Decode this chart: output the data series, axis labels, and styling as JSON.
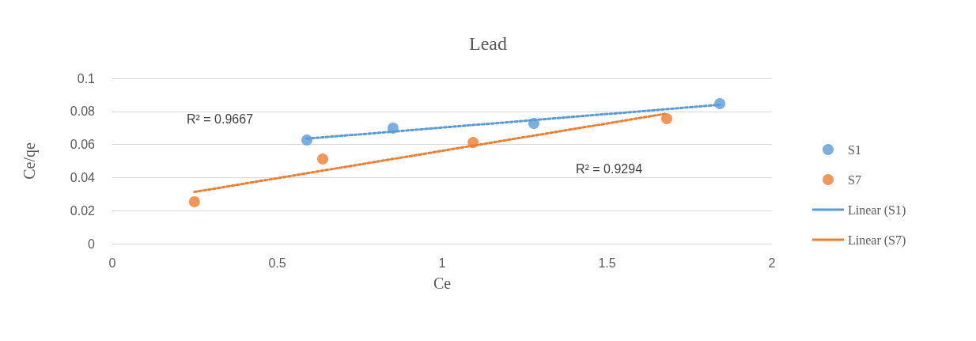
{
  "chart_data": {
    "type": "scatter",
    "title": "Lead",
    "xlabel": "Ce",
    "ylabel": "Ce/qe",
    "xlim": [
      0,
      2
    ],
    "xticks": [
      0,
      0.5,
      1,
      1.5,
      2
    ],
    "ylim": [
      0,
      0.1
    ],
    "yticks": [
      0,
      0.02,
      0.04,
      0.06,
      0.08,
      0.1
    ],
    "grid": "y",
    "legend": "right",
    "series": [
      {
        "name": "S1",
        "marker": "circle",
        "color": "#5b9bd5",
        "x": [
          0.59,
          0.851,
          1.278,
          1.842
        ],
        "values": [
          0.0627,
          0.0699,
          0.0727,
          0.0847
        ]
      },
      {
        "name": "S7",
        "marker": "circle",
        "color": "#ed7d31",
        "x": [
          0.249,
          0.638,
          1.094,
          1.681
        ],
        "values": [
          0.0254,
          0.0512,
          0.0612,
          0.0756
        ]
      },
      {
        "name": "Linear (S1)",
        "type": "line",
        "marker": "none",
        "line_style": "dotted",
        "color": "#5b9bd5",
        "x": [
          0.59,
          1.842
        ],
        "values": [
          0.0635,
          0.084
        ]
      },
      {
        "name": "Linear (S7)",
        "type": "line",
        "marker": "none",
        "line_style": "dotted",
        "color": "#ed7d31",
        "x": [
          0.249,
          1.681
        ],
        "values": [
          0.0313,
          0.0787
        ]
      }
    ],
    "annotations": [
      "R² = 0.9667",
      "R² = 0.9294"
    ]
  }
}
